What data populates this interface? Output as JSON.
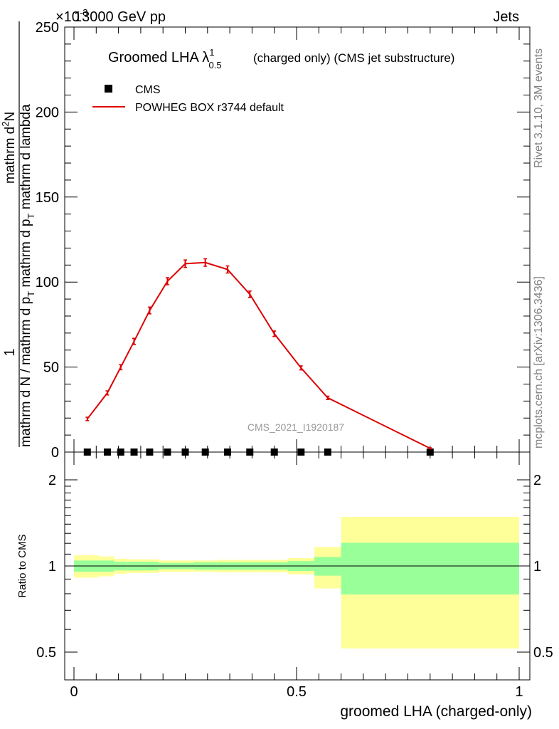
{
  "header": {
    "energy_label": "13000 GeV pp",
    "process_label": "Jets",
    "exponent_label": "×10",
    "exponent_power": "-3"
  },
  "sidebar": {
    "rivet_label": "Rivet 3.1.10,  3M events",
    "mcplots_label": "mcplots.cern.ch [arXiv:1306.3436]"
  },
  "chart_data": [
    {
      "type": "line",
      "title_main": "Groomed LHA",
      "title_lambda": "λ",
      "title_sup": "1",
      "title_sub": "0.5",
      "title_tail": "(charged only) (CMS jet substructure)",
      "watermark": "CMS_2021_I1920187",
      "ylabel_numerator": "1",
      "ylabel_line1": "mathrm d N / mathrm d p",
      "ylabel_line1_sub": "T",
      "ylabel_line1_tail": "mathrm d p",
      "ylabel_line1_sub2": "T",
      "ylabel_line1_tail2": "mathrm d lambda",
      "ylabel_top": "mathrm d",
      "ylabel_top_sup": "2",
      "ylabel_top_tail": "N",
      "xlim": [
        0,
        1
      ],
      "ylim": [
        0,
        250
      ],
      "y_ticks": [
        0,
        50,
        100,
        150,
        200,
        250
      ],
      "y_tick_labels": [
        "0",
        "50",
        "100",
        "150",
        "200",
        "250"
      ],
      "legend": [
        {
          "label": "CMS",
          "marker": "square",
          "color": "#000000"
        },
        {
          "label": "POWHEG BOX r3744 default",
          "marker": "line",
          "color": "#dd0000"
        }
      ],
      "series": [
        {
          "name": "CMS",
          "color": "#000000",
          "x": [
            0.03,
            0.075,
            0.105,
            0.135,
            0.17,
            0.21,
            0.25,
            0.295,
            0.345,
            0.395,
            0.45,
            0.51,
            0.57,
            0.8
          ],
          "y": [
            0,
            0,
            0,
            0,
            0,
            0,
            0,
            0,
            0,
            0,
            0,
            0,
            0,
            0
          ]
        },
        {
          "name": "POWHEG BOX r3744 default",
          "color": "#dd0000",
          "x": [
            0.03,
            0.075,
            0.105,
            0.135,
            0.17,
            0.21,
            0.25,
            0.295,
            0.345,
            0.395,
            0.45,
            0.51,
            0.57,
            0.8
          ],
          "y": [
            19.5,
            34.8,
            49.9,
            65.1,
            83.3,
            100.5,
            110.8,
            111.5,
            107.4,
            92.8,
            69.6,
            49.5,
            31.9,
            2.2
          ],
          "err": [
            1.0,
            1.2,
            1.5,
            1.8,
            2.0,
            2.1,
            2.2,
            2.2,
            2.1,
            1.9,
            1.6,
            1.2,
            1.0,
            0.3
          ]
        }
      ]
    },
    {
      "type": "area",
      "ylabel": "Ratio to CMS",
      "xlabel": "groomed LHA (charged-only)",
      "xlim": [
        0,
        1
      ],
      "ylim": [
        0.4,
        2.3
      ],
      "x_ticks": [
        0,
        0.5,
        1
      ],
      "x_tick_labels": [
        "0",
        "0.5",
        "1"
      ],
      "y_ticks": [
        0.5,
        1,
        2
      ],
      "y_tick_labels": [
        "0.5",
        "1",
        "2"
      ],
      "reference_line": 1.0,
      "bins": [
        0,
        0.055,
        0.09,
        0.12,
        0.15,
        0.19,
        0.23,
        0.27,
        0.32,
        0.37,
        0.42,
        0.48,
        0.54,
        0.6,
        1.0
      ],
      "band_stat": {
        "name": "stat",
        "color": "#99ff99",
        "low": [
          0.955,
          0.955,
          0.965,
          0.965,
          0.965,
          0.975,
          0.975,
          0.97,
          0.97,
          0.97,
          0.97,
          0.96,
          0.925,
          0.795
        ],
        "high": [
          1.045,
          1.045,
          1.035,
          1.035,
          1.035,
          1.025,
          1.025,
          1.03,
          1.03,
          1.03,
          1.03,
          1.04,
          1.075,
          1.205
        ]
      },
      "band_total": {
        "name": "stat+syst",
        "color": "#ffff99",
        "low": [
          0.91,
          0.92,
          0.94,
          0.945,
          0.945,
          0.955,
          0.955,
          0.955,
          0.95,
          0.95,
          0.95,
          0.935,
          0.835,
          0.515
        ],
        "high": [
          1.09,
          1.08,
          1.06,
          1.055,
          1.055,
          1.045,
          1.045,
          1.045,
          1.05,
          1.05,
          1.05,
          1.065,
          1.165,
          1.485
        ]
      }
    }
  ]
}
